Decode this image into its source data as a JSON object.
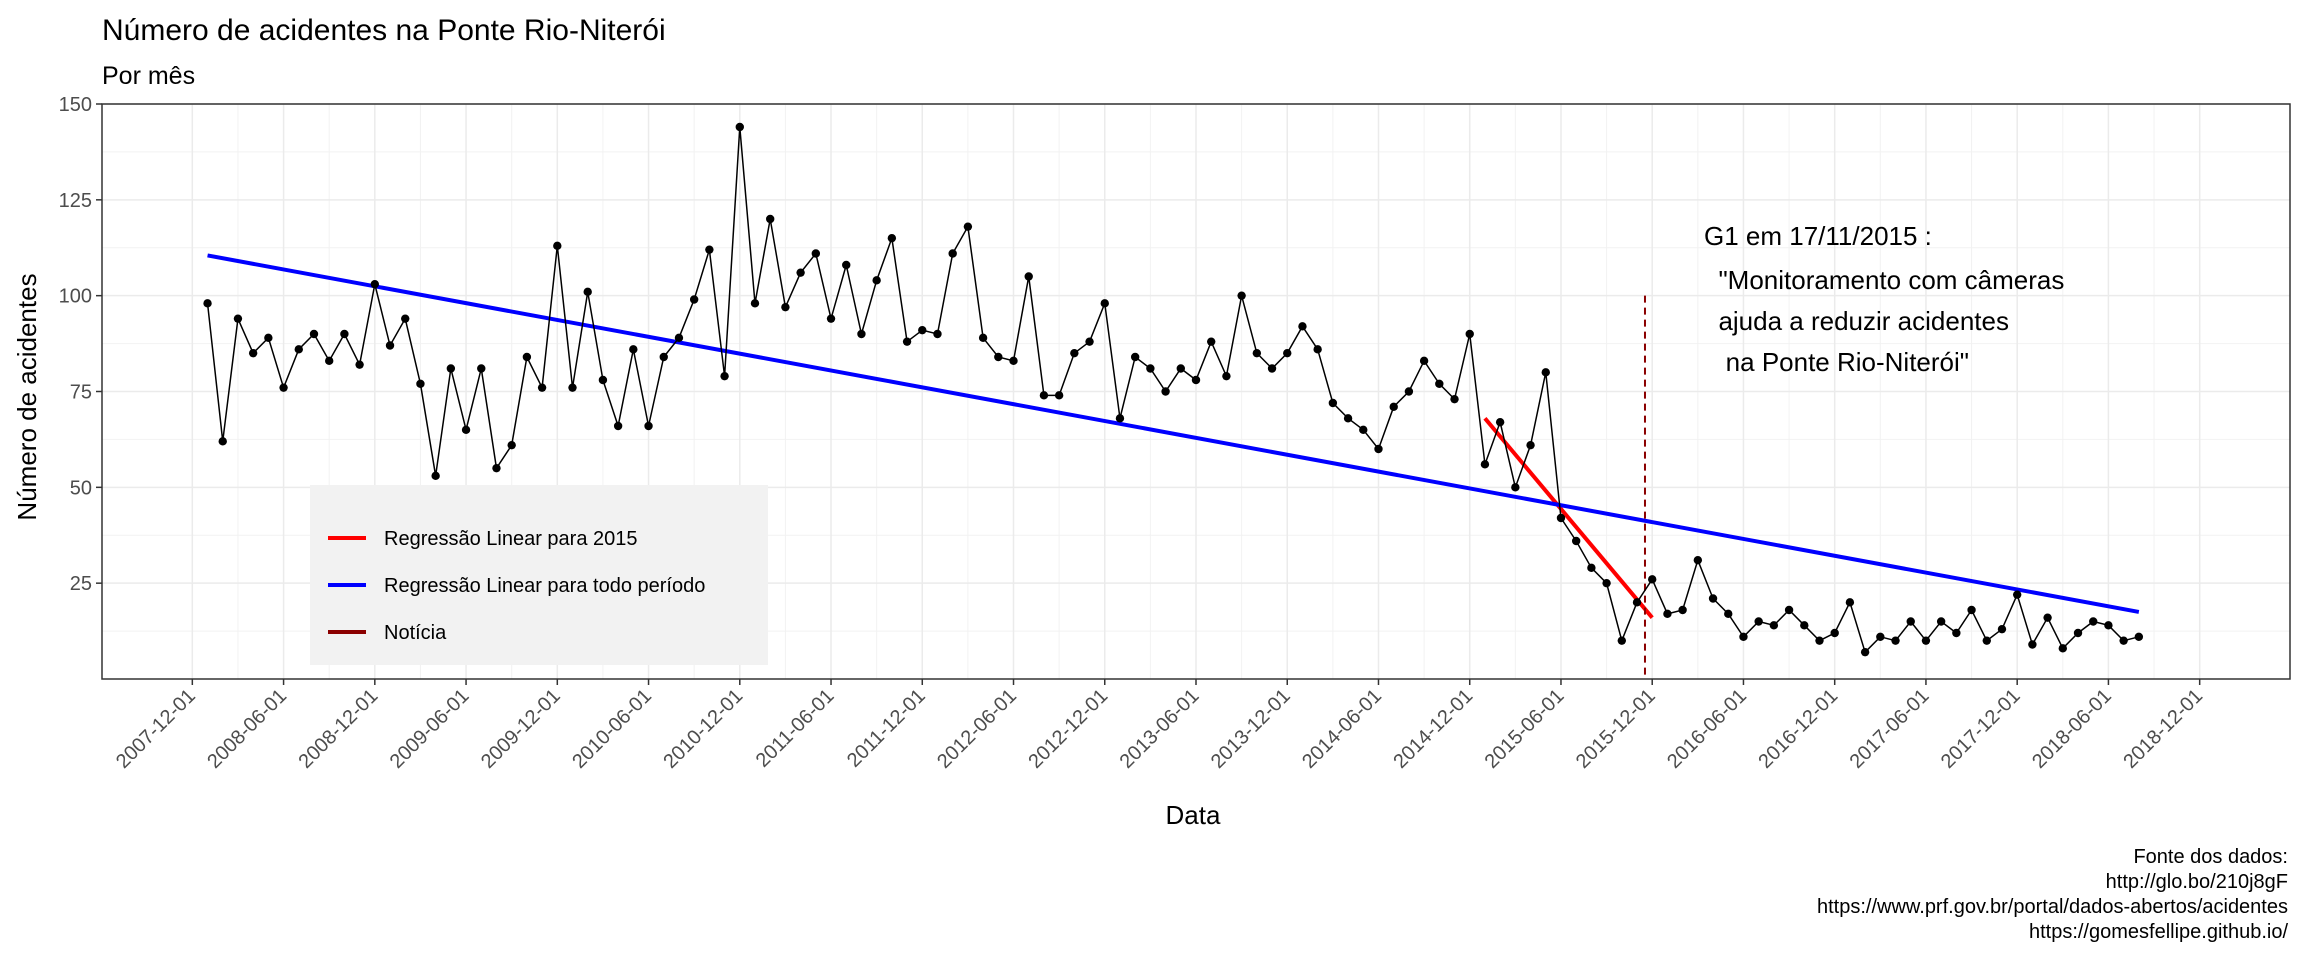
{
  "chart_data": {
    "type": "line",
    "title": "Número de acidentes na Ponte Rio-Niterói",
    "subtitle": "Por mês",
    "xlabel": "Data",
    "ylabel": "Número de acidentes",
    "ylim": [
      0,
      150
    ],
    "yticks": [
      25,
      50,
      75,
      100,
      125,
      150
    ],
    "xlim": [
      "2007-12-01",
      "2018-12-01"
    ],
    "xticks": [
      "2007-12-01",
      "2008-06-01",
      "2008-12-01",
      "2009-06-01",
      "2009-12-01",
      "2010-06-01",
      "2010-12-01",
      "2011-06-01",
      "2011-12-01",
      "2012-06-01",
      "2012-12-01",
      "2013-06-01",
      "2013-12-01",
      "2014-06-01",
      "2014-12-01",
      "2015-06-01",
      "2015-12-01",
      "2016-06-01",
      "2016-12-01",
      "2017-06-01",
      "2017-12-01",
      "2018-06-01",
      "2018-12-01"
    ],
    "grid": true,
    "series": [
      {
        "name": "Número de acidentes",
        "color": "#000000",
        "x_start": "2008-01",
        "values": [
          98,
          62,
          94,
          85,
          89,
          76,
          86,
          90,
          83,
          90,
          82,
          103,
          87,
          94,
          77,
          53,
          81,
          65,
          81,
          55,
          61,
          84,
          76,
          113,
          76,
          101,
          78,
          66,
          86,
          66,
          84,
          89,
          99,
          112,
          79,
          144,
          98,
          120,
          97,
          106,
          111,
          94,
          108,
          90,
          104,
          115,
          88,
          91,
          90,
          111,
          118,
          89,
          84,
          83,
          105,
          74,
          74,
          85,
          88,
          98,
          68,
          84,
          81,
          75,
          81,
          78,
          88,
          79,
          100,
          85,
          81,
          85,
          92,
          86,
          72,
          68,
          65,
          60,
          71,
          75,
          83,
          77,
          73,
          90,
          56,
          67,
          50,
          61,
          80,
          42,
          36,
          29,
          25,
          10,
          20,
          26,
          17,
          18,
          31,
          21,
          17,
          11,
          15,
          14,
          18,
          14,
          10,
          12,
          20,
          7,
          11,
          10,
          15,
          10,
          15,
          12,
          18,
          10,
          13,
          22,
          9,
          16,
          8,
          12,
          15,
          14,
          10,
          11
        ]
      }
    ],
    "regressions": [
      {
        "name": "Regressão Linear para 2015",
        "color": "#ff0000",
        "x": [
          "2015-01-01",
          "2015-12-01"
        ],
        "y": [
          68,
          16
        ]
      },
      {
        "name": "Regressão Linear para todo período",
        "color": "#0000ff",
        "x": [
          "2008-01-01",
          "2018-08-01"
        ],
        "y": [
          110.5,
          17.5
        ]
      }
    ],
    "vline": {
      "name": "Notícia",
      "color": "#8b0000",
      "x": "2015-11-17",
      "y_top": 100
    },
    "legend": {
      "placement": "bottom-left",
      "items": [
        {
          "label": "Regressão Linear para 2015",
          "color": "#ff0000"
        },
        {
          "label": "Regressão Linear para todo período",
          "color": "#0000ff"
        },
        {
          "label": "Notícia",
          "color": "#8b0000"
        }
      ]
    },
    "annotation": {
      "lines": [
        "G1 em 17/11/2015 :",
        "  \"Monitoramento com câmeras",
        "  ajuda a reduzir acidentes",
        "   na Ponte Rio-Niterói\""
      ]
    },
    "caption": [
      "Fonte dos dados:",
      "http://glo.bo/210j8gF",
      "https://www.prf.gov.br/portal/dados-abertos/acidentes",
      "https://gomesfellipe.github.io/"
    ]
  }
}
